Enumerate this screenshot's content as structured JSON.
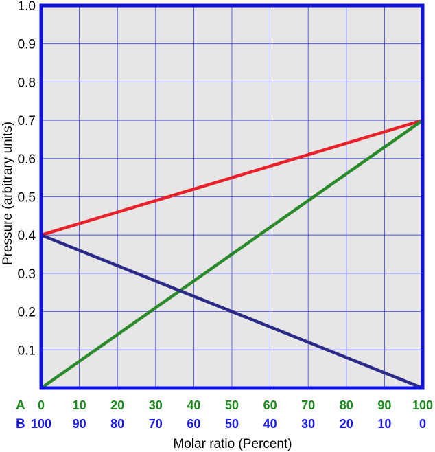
{
  "chart_data": {
    "type": "line",
    "xlabel": "Molar ratio (Percent)",
    "ylabel": "Pressure (arbitrary units)",
    "x_rows": [
      {
        "label": "A",
        "ticks": [
          "0",
          "10",
          "20",
          "30",
          "40",
          "50",
          "60",
          "70",
          "80",
          "90",
          "100"
        ],
        "color": "#1a8a1a"
      },
      {
        "label": "B",
        "ticks": [
          "100",
          "90",
          "80",
          "70",
          "60",
          "50",
          "40",
          "30",
          "20",
          "10",
          "0"
        ],
        "color": "#1a1aee"
      }
    ],
    "x": [
      0,
      100
    ],
    "xlim": [
      0,
      100
    ],
    "ylim": [
      0,
      1.0
    ],
    "yticks": [
      "0.1",
      "0.2",
      "0.3",
      "0.4",
      "0.5",
      "0.6",
      "0.7",
      "0.8",
      "0.9",
      "1.0"
    ],
    "ytick_values": [
      0.1,
      0.2,
      0.3,
      0.4,
      0.5,
      0.6,
      0.7,
      0.8,
      0.9,
      1.0
    ],
    "grid": true,
    "plot_background": "#e6e6e6",
    "grid_color": "#3a3aee",
    "frame_color": "#1010dd",
    "series": [
      {
        "values": [
          0.4,
          0.7
        ],
        "color": "#e8222a"
      },
      {
        "values": [
          0.0,
          0.7
        ],
        "color": "#2a8a2a"
      },
      {
        "values": [
          0.4,
          0.0
        ],
        "color": "#2a2a88"
      }
    ]
  }
}
